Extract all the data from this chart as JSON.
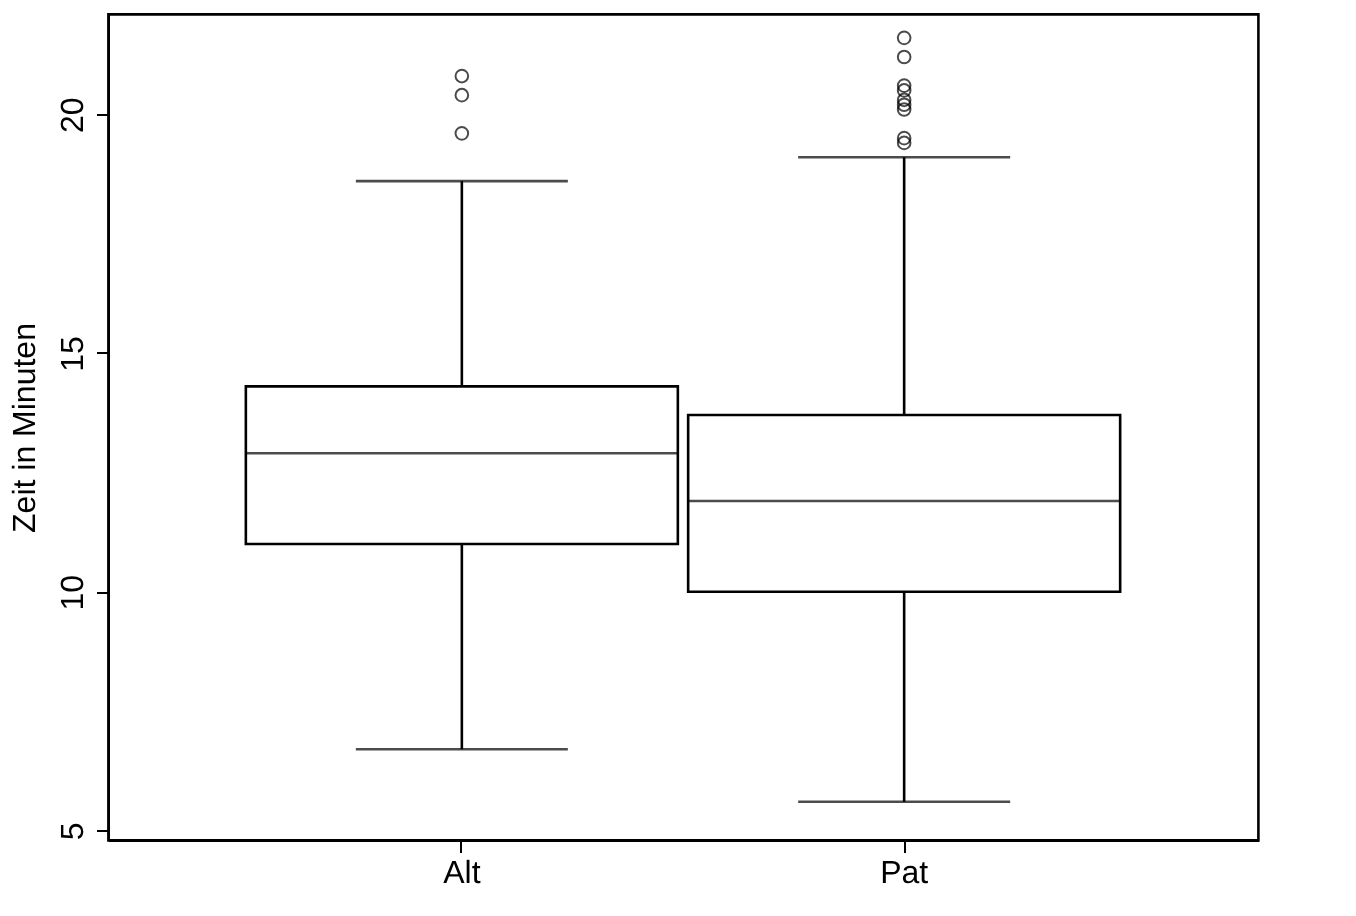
{
  "chart_data": {
    "type": "box",
    "ylabel": "Zeit in Minuten",
    "categories": [
      "Alt",
      "Pat"
    ],
    "boxes": [
      {
        "low": 6.7,
        "q1": 11.0,
        "median": 12.9,
        "q3": 14.3,
        "high": 18.6,
        "outliers": [
          19.6,
          20.4,
          20.8
        ]
      },
      {
        "low": 5.6,
        "q1": 10.0,
        "median": 11.9,
        "q3": 13.7,
        "high": 19.1,
        "outliers": [
          19.4,
          19.5,
          20.1,
          20.2,
          20.3,
          20.5,
          20.6,
          21.2,
          21.6
        ]
      }
    ],
    "ylim": [
      4.8,
      22.1
    ],
    "yticks": [
      5,
      10,
      15,
      20
    ],
    "marker": "circle",
    "grid": false
  }
}
